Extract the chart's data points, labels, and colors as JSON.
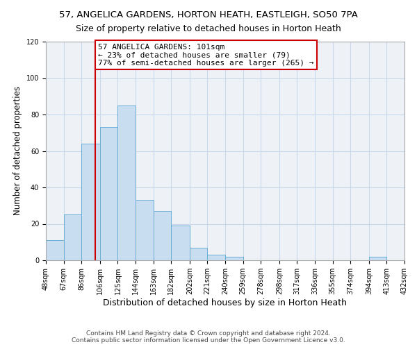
{
  "title": "57, ANGELICA GARDENS, HORTON HEATH, EASTLEIGH, SO50 7PA",
  "subtitle": "Size of property relative to detached houses in Horton Heath",
  "xlabel": "Distribution of detached houses by size in Horton Heath",
  "ylabel": "Number of detached properties",
  "bin_edges": [
    48,
    67,
    86,
    106,
    125,
    144,
    163,
    182,
    202,
    221,
    240,
    259,
    278,
    298,
    317,
    336,
    355,
    374,
    394,
    413,
    432
  ],
  "bin_labels": [
    "48sqm",
    "67sqm",
    "86sqm",
    "106sqm",
    "125sqm",
    "144sqm",
    "163sqm",
    "182sqm",
    "202sqm",
    "221sqm",
    "240sqm",
    "259sqm",
    "278sqm",
    "298sqm",
    "317sqm",
    "336sqm",
    "355sqm",
    "374sqm",
    "394sqm",
    "413sqm",
    "432sqm"
  ],
  "counts": [
    11,
    25,
    64,
    73,
    85,
    33,
    27,
    19,
    7,
    3,
    2,
    0,
    0,
    0,
    0,
    0,
    0,
    0,
    2,
    0
  ],
  "bar_color": "#c8ddf0",
  "bar_edge_color": "#6aaed6",
  "vline_x": 101,
  "vline_color": "#cc0000",
  "annotation_line1": "57 ANGELICA GARDENS: 101sqm",
  "annotation_line2": "← 23% of detached houses are smaller (79)",
  "annotation_line3": "77% of semi-detached houses are larger (265) →",
  "annotation_box_edge": "#cc0000",
  "annotation_box_bg": "#ffffff",
  "ylim": [
    0,
    120
  ],
  "yticks": [
    0,
    20,
    40,
    60,
    80,
    100,
    120
  ],
  "grid_color": "#c8d8e8",
  "background_color": "#eef2f7",
  "footer_line1": "Contains HM Land Registry data © Crown copyright and database right 2024.",
  "footer_line2": "Contains public sector information licensed under the Open Government Licence v3.0.",
  "title_fontsize": 9.5,
  "subtitle_fontsize": 9,
  "xlabel_fontsize": 9,
  "ylabel_fontsize": 8.5,
  "tick_fontsize": 7,
  "annotation_fontsize": 8,
  "footer_fontsize": 6.5
}
